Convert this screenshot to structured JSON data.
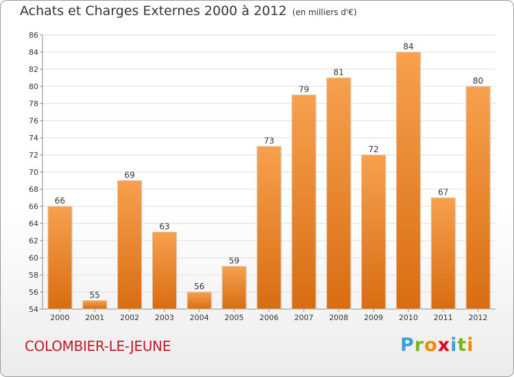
{
  "header": {
    "title": "Achats et Charges Externes 2000 à 2012",
    "subtitle": "(en milliers d'€)"
  },
  "location": "COLOMBIER-LE-JEUNE",
  "logo": {
    "text": "Proxiti",
    "letters": [
      {
        "char": "P",
        "color": "#3aa0dc"
      },
      {
        "char": "r",
        "color": "#7ab51d"
      },
      {
        "char": "o",
        "color": "#f08a00"
      },
      {
        "char": "x",
        "color": "#e2001a"
      },
      {
        "char": "i",
        "color": "#3aa0dc"
      },
      {
        "char": "t",
        "color": "#7ab51d"
      },
      {
        "char": "i",
        "color": "#f08a00"
      }
    ]
  },
  "chart_data": {
    "type": "bar",
    "title": "Achats et Charges Externes 2000 à 2012",
    "subtitle": "(en milliers d'€)",
    "categories": [
      "2000",
      "2001",
      "2002",
      "2003",
      "2004",
      "2005",
      "2006",
      "2007",
      "2008",
      "2009",
      "2010",
      "2011",
      "2012"
    ],
    "values": [
      66,
      55,
      69,
      63,
      56,
      59,
      73,
      79,
      81,
      72,
      84,
      67,
      80
    ],
    "ylim": [
      54,
      86
    ],
    "yticks": [
      54,
      56,
      58,
      60,
      62,
      64,
      66,
      68,
      70,
      72,
      74,
      76,
      78,
      80,
      82,
      84,
      86
    ],
    "grid": true,
    "bar_color": "#f0902c",
    "data_labels": true
  }
}
